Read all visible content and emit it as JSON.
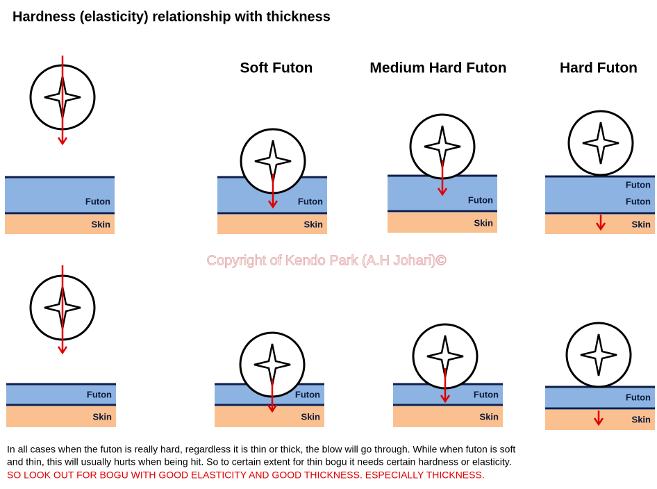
{
  "title": "Hardness (elasticity) relationship with thickness",
  "columns": [
    "Soft Futon",
    "Medium Hard Futon",
    "Hard Futon"
  ],
  "watermark": "Copyright of Kendo Park (A.H Johari)©",
  "panels": [
    {
      "labels": [
        "Futon",
        "Skin"
      ]
    },
    {
      "labels": [
        "Futon",
        "Skin"
      ]
    },
    {
      "labels": [
        "Futon",
        "Skin"
      ]
    },
    {
      "labels": [
        "Futon",
        "Futon",
        "Skin"
      ]
    },
    {
      "labels": [
        "Futon",
        "Skin"
      ]
    },
    {
      "labels": [
        "Futon",
        "Skin"
      ]
    },
    {
      "labels": [
        "Futon",
        "Skin"
      ]
    },
    {
      "labels": [
        "Futon",
        "Skin"
      ]
    }
  ],
  "body": [
    "In all cases when the futon is really hard, regardless it is thin or thick, the blow will go through. While when futon is soft",
    "and thin, this will usually hurts when being hit.  So to certain extent for thin bogu it needs certain hardness or elasticity."
  ],
  "warning": "SO LOOK OUT FOR BOGU WITH GOOD ELASTICITY AND GOOD THICKNESS. ESPECIALLY THICKNESS."
}
